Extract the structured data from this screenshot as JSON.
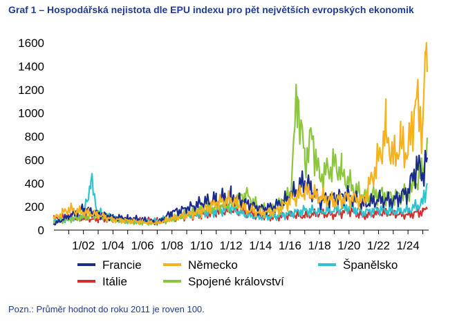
{
  "title": "Graf 1 – Hospodářská nejistota dle EPU indexu pro pět největších evropských ekonomik",
  "note": "Pozn.: Průměr hodnot do roku 2011 je roven 100.",
  "chart_data": {
    "type": "line",
    "title": "Graf 1 – Hospodářská nejistota dle EPU indexu pro pět největších evropských ekonomik",
    "xlabel": "",
    "ylabel": "",
    "x_range": [
      2000.0,
      2025.4
    ],
    "ylim": [
      0,
      1600
    ],
    "yticks": [
      0,
      200,
      400,
      600,
      800,
      1000,
      1200,
      1400,
      1600
    ],
    "xtick_labels": [
      "1/02",
      "1/04",
      "1/06",
      "1/08",
      "1/10",
      "1/12",
      "1/14",
      "1/16",
      "1/18",
      "1/20",
      "1/22",
      "1/24"
    ],
    "xtick_positions": [
      2002,
      2004,
      2006,
      2008,
      2010,
      2012,
      2014,
      2016,
      2018,
      2020,
      2022,
      2024
    ],
    "grid": false,
    "legend_placement": "bottom",
    "series": [
      {
        "name": "Itálie",
        "color": "#d32f2f",
        "x": [
          2000.0,
          2001.0,
          2002.0,
          2003.0,
          2004.0,
          2005.0,
          2006.0,
          2007.0,
          2008.0,
          2009.0,
          2010.0,
          2011.0,
          2012.0,
          2013.0,
          2014.0,
          2015.0,
          2016.0,
          2017.0,
          2018.0,
          2019.0,
          2020.0,
          2021.0,
          2022.0,
          2023.0,
          2024.0,
          2025.0,
          2025.3
        ],
        "y": [
          100,
          110,
          100,
          90,
          95,
          85,
          85,
          80,
          100,
          120,
          130,
          150,
          175,
          150,
          120,
          110,
          130,
          120,
          145,
          130,
          170,
          120,
          150,
          140,
          130,
          160,
          180
        ]
      },
      {
        "name": "Španělsko",
        "color": "#2ec4cf",
        "x": [
          2000.0,
          2001.0,
          2002.0,
          2002.5,
          2003.0,
          2004.0,
          2005.0,
          2006.0,
          2007.0,
          2008.0,
          2009.0,
          2010.0,
          2011.0,
          2012.0,
          2013.0,
          2014.0,
          2015.0,
          2016.0,
          2017.0,
          2018.0,
          2019.0,
          2020.0,
          2021.0,
          2022.0,
          2023.0,
          2024.0,
          2025.0,
          2025.3
        ],
        "y": [
          80,
          100,
          130,
          410,
          150,
          100,
          80,
          80,
          80,
          110,
          140,
          150,
          160,
          190,
          130,
          110,
          120,
          140,
          170,
          160,
          170,
          200,
          150,
          180,
          160,
          170,
          230,
          400
        ]
      },
      {
        "name": "Spojené království",
        "color": "#8cc63f",
        "x": [
          2000.0,
          2001.0,
          2002.0,
          2003.0,
          2004.0,
          2005.0,
          2006.0,
          2007.0,
          2008.0,
          2009.0,
          2010.0,
          2011.0,
          2012.0,
          2013.0,
          2014.0,
          2015.0,
          2016.0,
          2016.5,
          2017.0,
          2017.5,
          2018.0,
          2019.0,
          2019.5,
          2020.0,
          2021.0,
          2022.0,
          2023.0,
          2024.0,
          2025.0,
          2025.3
        ],
        "y": [
          70,
          90,
          110,
          130,
          90,
          70,
          60,
          60,
          90,
          140,
          180,
          200,
          230,
          300,
          180,
          180,
          300,
          1140,
          600,
          800,
          450,
          560,
          500,
          400,
          280,
          310,
          280,
          320,
          500,
          790
        ]
      },
      {
        "name": "Francie",
        "color": "#1a2b8c",
        "x": [
          2000.0,
          2001.0,
          2002.0,
          2003.0,
          2004.0,
          2005.0,
          2006.0,
          2007.0,
          2008.0,
          2009.0,
          2010.0,
          2011.0,
          2012.0,
          2013.0,
          2014.0,
          2015.0,
          2016.0,
          2017.0,
          2018.0,
          2019.0,
          2020.0,
          2021.0,
          2022.0,
          2023.0,
          2024.0,
          2024.6,
          2025.0,
          2025.3
        ],
        "y": [
          50,
          120,
          180,
          140,
          110,
          100,
          90,
          60,
          150,
          180,
          230,
          260,
          290,
          230,
          180,
          200,
          280,
          420,
          250,
          280,
          300,
          220,
          260,
          250,
          330,
          560,
          480,
          620
        ]
      },
      {
        "name": "Německo",
        "color": "#f5b21e",
        "x": [
          2000.0,
          2001.0,
          2002.0,
          2003.0,
          2004.0,
          2005.0,
          2006.0,
          2007.0,
          2008.0,
          2009.0,
          2010.0,
          2011.0,
          2012.0,
          2013.0,
          2014.0,
          2015.0,
          2016.0,
          2017.0,
          2018.0,
          2019.0,
          2020.0,
          2021.0,
          2022.0,
          2022.5,
          2023.0,
          2023.5,
          2024.0,
          2024.5,
          2025.0,
          2025.2,
          2025.3
        ],
        "y": [
          100,
          180,
          150,
          130,
          90,
          80,
          70,
          60,
          100,
          130,
          160,
          230,
          260,
          180,
          150,
          160,
          250,
          330,
          280,
          250,
          280,
          250,
          600,
          850,
          600,
          750,
          650,
          1100,
          900,
          1500,
          1350
        ]
      }
    ]
  },
  "legend": {
    "items": [
      {
        "label": "Francie",
        "color": "#1a2b8c"
      },
      {
        "label": "Německo",
        "color": "#f5b21e"
      },
      {
        "label": "Španělsko",
        "color": "#2ec4cf"
      },
      {
        "label": "Itálie",
        "color": "#d32f2f"
      },
      {
        "label": "Spojené království",
        "color": "#8cc63f"
      }
    ]
  }
}
